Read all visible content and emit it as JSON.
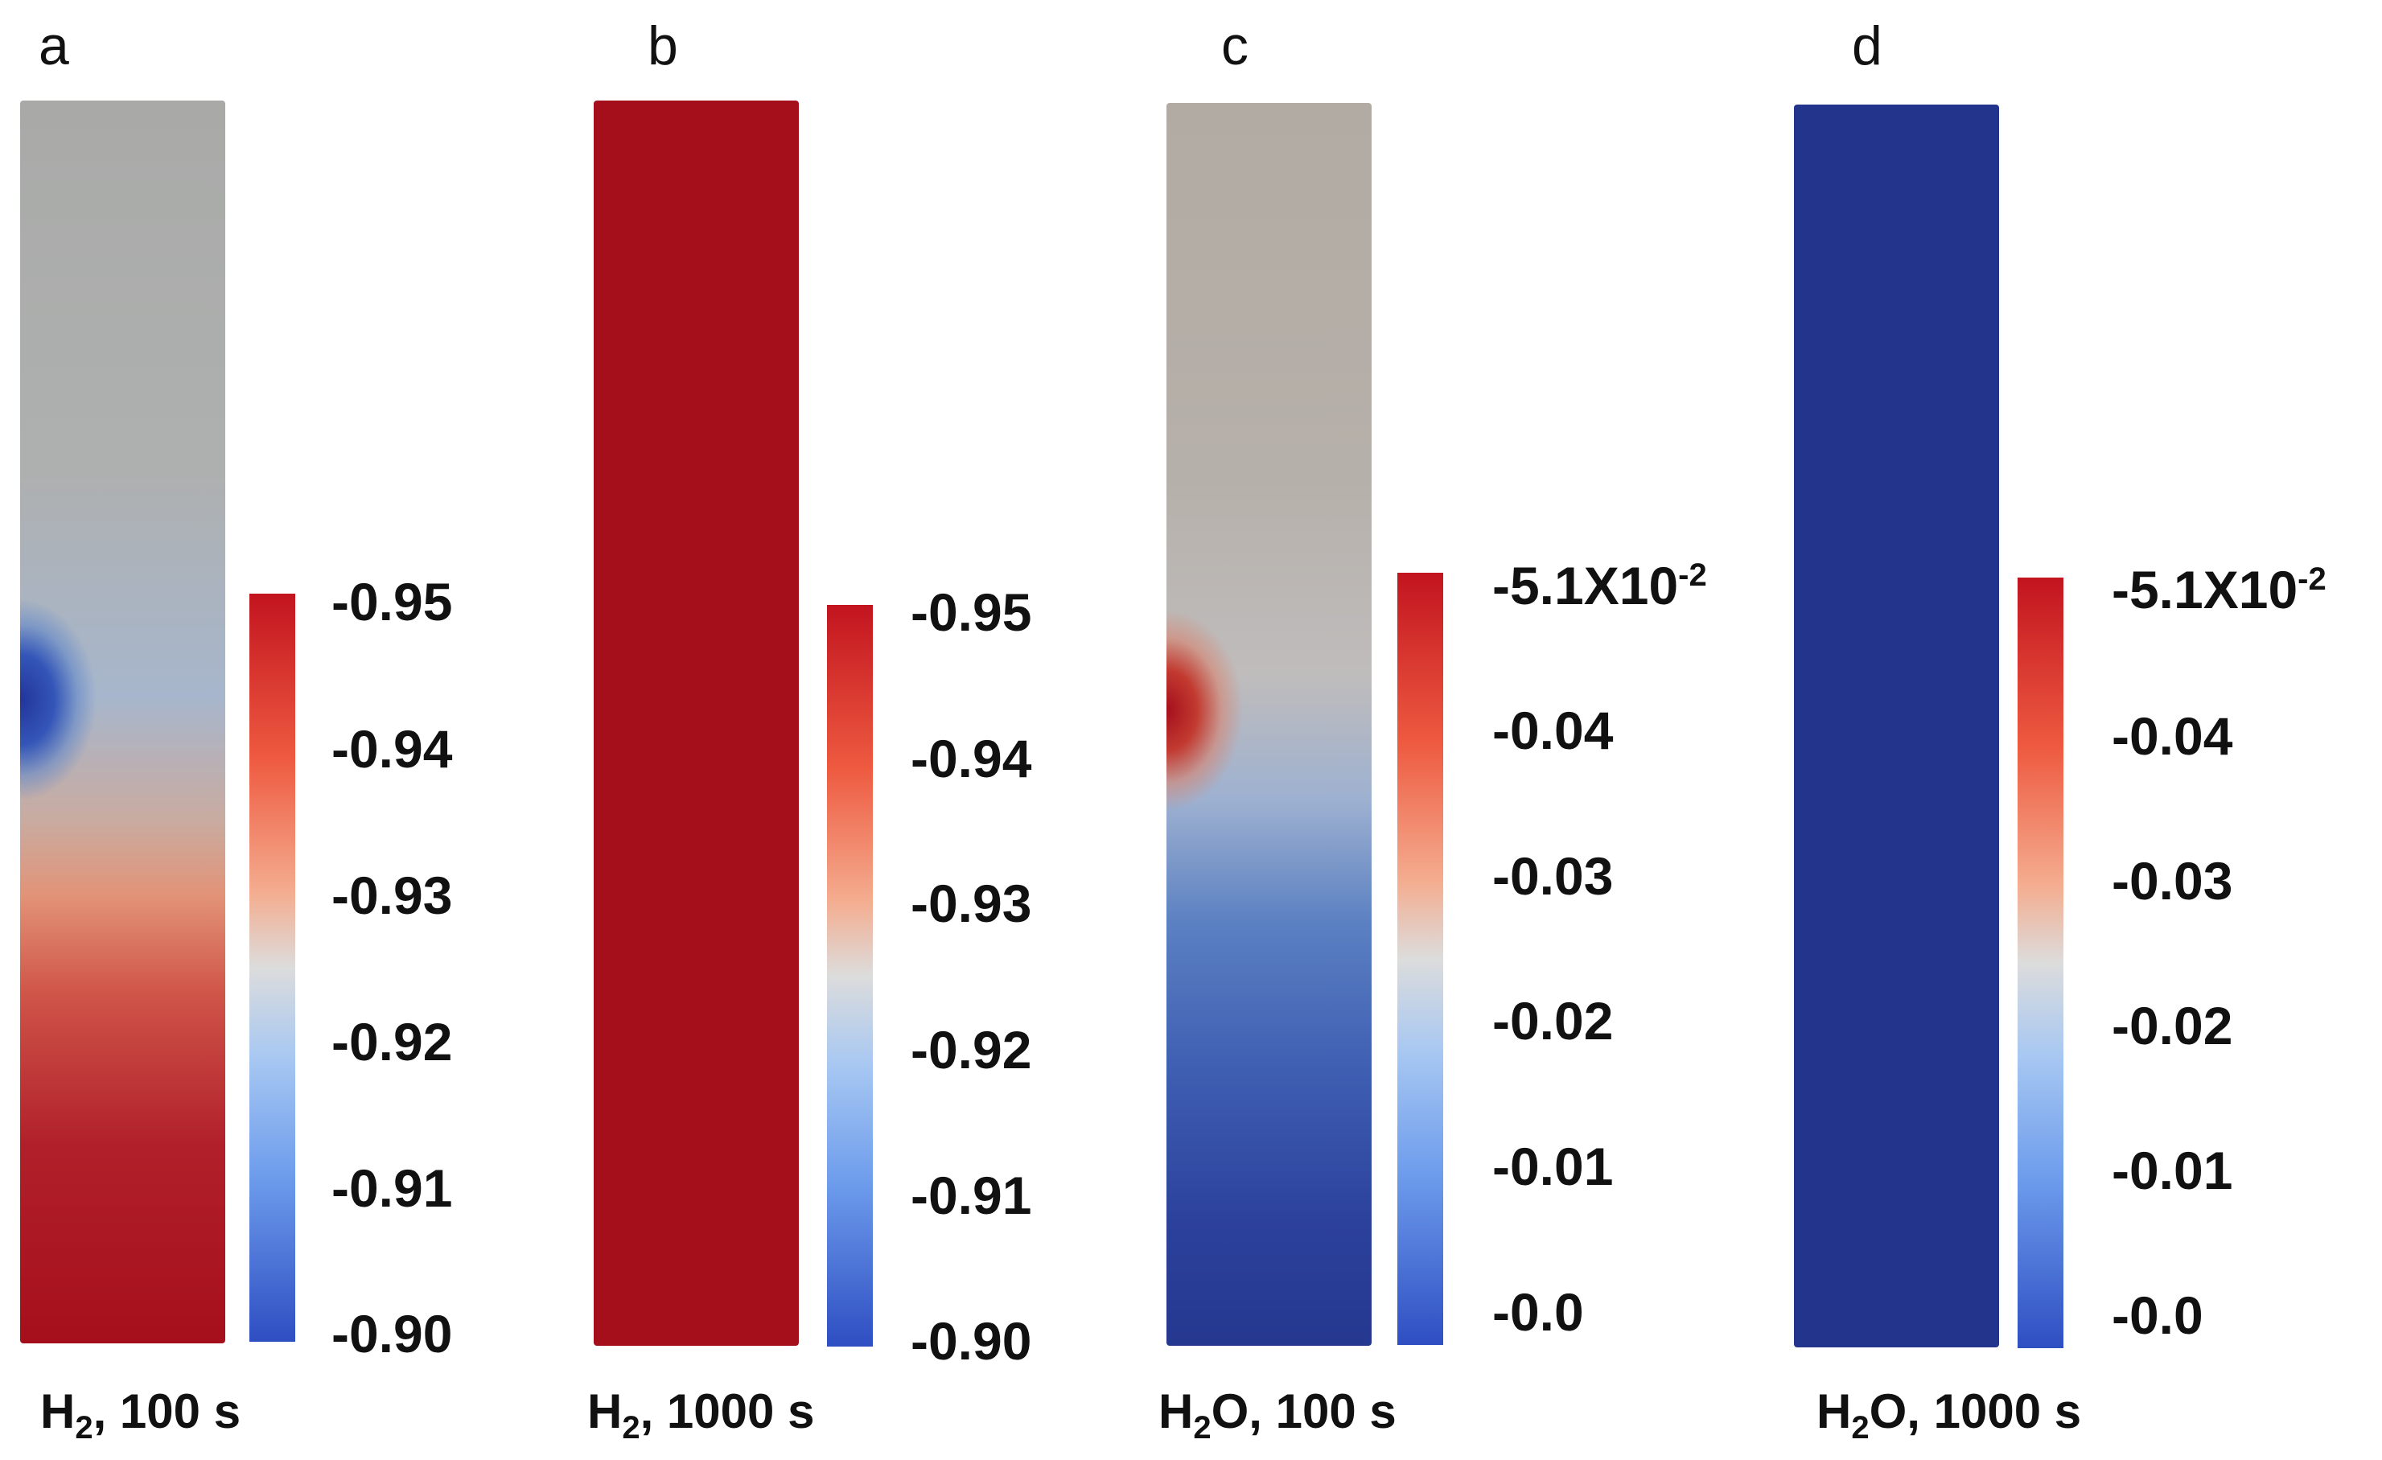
{
  "panels": [
    {
      "letter": "a",
      "caption": {
        "species": "H",
        "sub": "2",
        "rest": ", 100 s"
      },
      "ticks": [
        "-0.95",
        "-0.94",
        "-0.93",
        "-0.92",
        "-0.91",
        "-0.90"
      ]
    },
    {
      "letter": "b",
      "caption": {
        "species": "H",
        "sub": "2",
        "rest": ", 1000 s"
      },
      "ticks": [
        "-0.95",
        "-0.94",
        "-0.93",
        "-0.92",
        "-0.91",
        "-0.90"
      ]
    },
    {
      "letter": "c",
      "caption": {
        "species": "H",
        "sub": "2",
        "rest": "O, 100 s"
      },
      "ticks": [
        "-5.1X10",
        "-0.04",
        "-0.03",
        "-0.02",
        "-0.01",
        "-0.0"
      ],
      "top_exp": "-2"
    },
    {
      "letter": "d",
      "caption": {
        "species": "H",
        "sub": "2",
        "rest": "O, 1000 s"
      },
      "ticks": [
        "-5.1X10",
        "-0.04",
        "-0.03",
        "-0.02",
        "-0.01",
        "-0.0"
      ],
      "top_exp": "-2"
    }
  ],
  "colors": {
    "dark_red": "#a50f1c",
    "dark_blue": "#22348c",
    "grey": "#a9aaa8",
    "warm_grey": "#b2aba3"
  }
}
